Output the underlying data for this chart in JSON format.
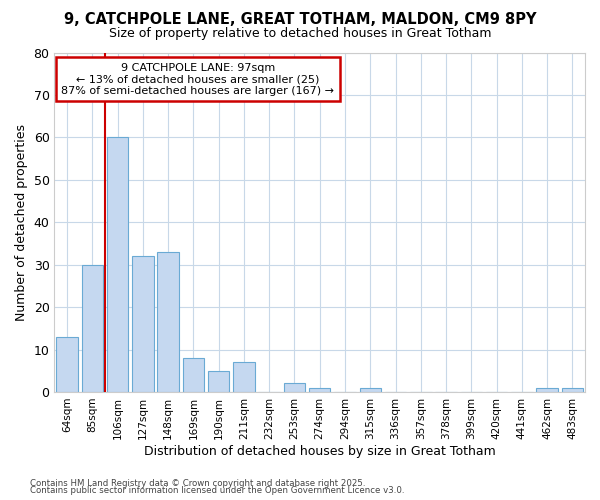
{
  "title1": "9, CATCHPOLE LANE, GREAT TOTHAM, MALDON, CM9 8PY",
  "title2": "Size of property relative to detached houses in Great Totham",
  "xlabel": "Distribution of detached houses by size in Great Totham",
  "ylabel": "Number of detached properties",
  "categories": [
    "64sqm",
    "85sqm",
    "106sqm",
    "127sqm",
    "148sqm",
    "169sqm",
    "190sqm",
    "211sqm",
    "232sqm",
    "253sqm",
    "274sqm",
    "294sqm",
    "315sqm",
    "336sqm",
    "357sqm",
    "378sqm",
    "399sqm",
    "420sqm",
    "441sqm",
    "462sqm",
    "483sqm"
  ],
  "values": [
    13,
    30,
    60,
    32,
    33,
    8,
    5,
    7,
    0,
    2,
    1,
    0,
    1,
    0,
    0,
    0,
    0,
    0,
    0,
    1,
    1
  ],
  "bar_color": "#c5d8f0",
  "bar_edge_color": "#6aaad4",
  "annotation_box_text": "9 CATCHPOLE LANE: 97sqm\n← 13% of detached houses are smaller (25)\n87% of semi-detached houses are larger (167) →",
  "annotation_box_color": "#ffffff",
  "annotation_box_edge_color": "#cc0000",
  "vline_x": 1.5,
  "vline_color": "#cc0000",
  "ylim": [
    0,
    80
  ],
  "yticks": [
    0,
    10,
    20,
    30,
    40,
    50,
    60,
    70,
    80
  ],
  "footnote1": "Contains HM Land Registry data © Crown copyright and database right 2025.",
  "footnote2": "Contains public sector information licensed under the Open Government Licence v3.0.",
  "background_color": "#ffffff",
  "plot_bg_color": "#ffffff",
  "grid_color": "#c8d8e8"
}
